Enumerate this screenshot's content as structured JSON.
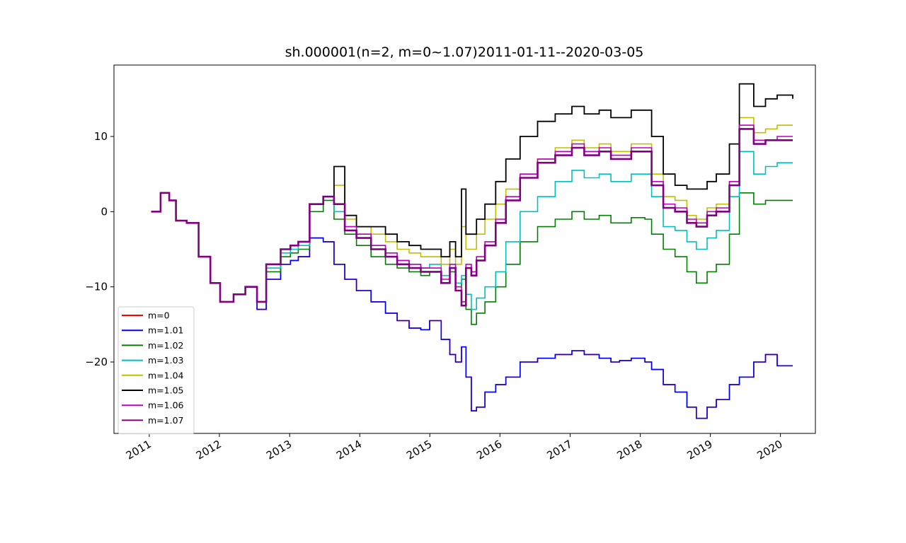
{
  "chart_data": {
    "type": "line",
    "title": "sh.000001(n=2, m=0~1.07)2011-01-11--2020-03-05",
    "xlabel": "",
    "ylabel": "",
    "x_ticks": [
      "2011",
      "2012",
      "2013",
      "2014",
      "2015",
      "2016",
      "2017",
      "2018",
      "2019",
      "2020"
    ],
    "y_ticks": [
      -20,
      -10,
      0,
      10
    ],
    "xlim": [
      "2010-07-01",
      "2020-07-01"
    ],
    "ylim": [
      -29.5,
      19.5
    ],
    "grid": false,
    "legend_position": "lower-left",
    "x": [
      "2011-01-11",
      "2011-03-01",
      "2011-04-15",
      "2011-05-20",
      "2011-07-15",
      "2011-09-15",
      "2011-11-15",
      "2012-01-05",
      "2012-03-15",
      "2012-05-15",
      "2012-07-15",
      "2012-09-01",
      "2012-11-15",
      "2013-01-05",
      "2013-02-15",
      "2013-04-15",
      "2013-06-25",
      "2013-08-20",
      "2013-10-15",
      "2013-12-15",
      "2014-03-01",
      "2014-05-15",
      "2014-07-15",
      "2014-09-15",
      "2014-11-15",
      "2014-12-31",
      "2015-03-01",
      "2015-04-15",
      "2015-05-15",
      "2015-06-15",
      "2015-07-08",
      "2015-08-05",
      "2015-09-01",
      "2015-10-15",
      "2015-12-10",
      "2016-02-01",
      "2016-04-15",
      "2016-07-15",
      "2016-10-15",
      "2017-01-10",
      "2017-03-15",
      "2017-06-01",
      "2017-08-01",
      "2017-09-15",
      "2017-11-15",
      "2018-01-25",
      "2018-03-01",
      "2018-05-01",
      "2018-07-01",
      "2018-09-01",
      "2018-10-20",
      "2018-12-15",
      "2019-02-01",
      "2019-04-10",
      "2019-06-01",
      "2019-08-15",
      "2019-10-15",
      "2019-12-15",
      "2020-03-05"
    ],
    "series": [
      {
        "name": "m=0",
        "color": "#ff0000",
        "values": [
          0,
          2.5,
          1.5,
          -1.2,
          -1.5,
          -6,
          -9.5,
          -12,
          -11,
          -10,
          -13,
          -9,
          -7,
          -6.5,
          -6,
          -3.5,
          -4,
          -7,
          -9,
          -10.5,
          -12,
          -13.5,
          -14.5,
          -15.5,
          -15.7,
          -14.5,
          -17,
          -19,
          -20,
          -18,
          -22,
          -26.5,
          -26,
          -24,
          -23,
          -22,
          -20,
          -19.5,
          -19,
          -18.5,
          -19,
          -19.5,
          -20,
          -19.8,
          -19.5,
          -20,
          -21,
          -23,
          -24,
          -26,
          -27.5,
          -26,
          -25,
          -23,
          -22,
          -20,
          -19,
          -20.5,
          -20.5
        ],
        "width": 1.6
      },
      {
        "name": "m=1.01",
        "color": "#0000ff",
        "values": [
          0,
          2.5,
          1.5,
          -1.2,
          -1.5,
          -6,
          -9.5,
          -12,
          -11,
          -10,
          -13,
          -9,
          -7,
          -6.5,
          -6,
          -3.5,
          -4,
          -7,
          -9,
          -10.5,
          -12,
          -13.5,
          -14.5,
          -15.5,
          -15.7,
          -14.5,
          -17,
          -19,
          -20,
          -18,
          -22,
          -26.5,
          -26,
          -24,
          -23,
          -22,
          -20,
          -19.5,
          -19,
          -18.5,
          -19,
          -19.5,
          -20,
          -19.8,
          -19.5,
          -20,
          -21,
          -23,
          -24,
          -26,
          -27.5,
          -26,
          -25,
          -23,
          -22,
          -20,
          -19,
          -20.5,
          -20.5
        ],
        "width": 1.6
      },
      {
        "name": "m=1.02",
        "color": "#008000",
        "values": [
          0,
          2.5,
          1.5,
          -1.2,
          -1.5,
          -6,
          -9.5,
          -12,
          -11,
          -10,
          -12,
          -8,
          -6,
          -5.5,
          -5,
          0,
          1.5,
          -1,
          -3,
          -4.5,
          -6,
          -7,
          -7.5,
          -8,
          -8.5,
          -8,
          -9.5,
          -8,
          -10,
          -9,
          -13,
          -15,
          -13.5,
          -12,
          -10,
          -7,
          -4,
          -2,
          -1,
          0,
          -1,
          -0.5,
          -1.5,
          -1.5,
          -0.8,
          -1,
          -3,
          -5,
          -6,
          -8,
          -9.5,
          -8,
          -7,
          -3,
          2.5,
          1,
          1.5,
          1.5,
          1.5
        ],
        "width": 1.6
      },
      {
        "name": "m=1.03",
        "color": "#00bfbf",
        "values": [
          0,
          2.5,
          1.5,
          -1.2,
          -1.5,
          -6,
          -9.5,
          -12,
          -11,
          -10,
          -12,
          -7.5,
          -5.5,
          -5,
          -4.5,
          1,
          2,
          0,
          -2,
          -3,
          -4.5,
          -6,
          -6.5,
          -7,
          -7.5,
          -7,
          -8.5,
          -7,
          -9.5,
          -8.5,
          -11,
          -13,
          -11.5,
          -10,
          -8,
          -4,
          0,
          2,
          4,
          5.5,
          4.5,
          5,
          4,
          4,
          5,
          5,
          2,
          -2,
          -2.5,
          -4,
          -5,
          -3.5,
          -2.5,
          2,
          8,
          5,
          6,
          6.5,
          6.5
        ],
        "width": 1.6
      },
      {
        "name": "m=1.04",
        "color": "#bfbf00",
        "values": [
          0,
          2.5,
          1.5,
          -1.2,
          -1.5,
          -6,
          -9.5,
          -12,
          -11,
          -10,
          -12,
          -7,
          -5,
          -4.5,
          -4,
          1,
          2,
          3.5,
          -1,
          -2,
          -3,
          -4,
          -5,
          -5.5,
          -6,
          -6,
          -7,
          -5,
          -7,
          -2,
          -5,
          -5,
          -3,
          -1,
          1,
          3,
          5,
          7,
          8.5,
          9.5,
          8.5,
          9,
          8,
          8,
          9,
          9,
          5,
          2,
          1.5,
          -0.5,
          -1,
          0.5,
          1,
          4,
          12.5,
          10.5,
          11,
          11.5,
          11.5
        ],
        "width": 1.6
      },
      {
        "name": "m=1.05",
        "color": "#000000",
        "values": [
          0,
          2.5,
          1.5,
          -1.2,
          -1.5,
          -6,
          -9.5,
          -12,
          -11,
          -10,
          -12,
          -7,
          -5,
          -4.5,
          -4,
          1,
          2,
          6,
          -0.5,
          -2,
          -2,
          -3,
          -4,
          -4.5,
          -5,
          -5,
          -6,
          -4,
          -6,
          3,
          -3,
          -3,
          -1,
          1,
          4,
          7,
          10,
          12,
          13,
          14,
          13,
          13.5,
          12.5,
          12.5,
          13.5,
          13.5,
          10,
          5,
          3.5,
          3,
          3,
          4,
          5,
          9,
          17,
          14,
          15,
          15.5,
          15
        ],
        "width": 1.8
      },
      {
        "name": "m=1.06",
        "color": "#bf00bf",
        "values": [
          0,
          2.5,
          1.5,
          -1.2,
          -1.5,
          -6,
          -9.5,
          -12,
          -11,
          -10,
          -12,
          -7,
          -5,
          -4.5,
          -4,
          1,
          2,
          1,
          -2,
          -3,
          -4.5,
          -5.5,
          -6.5,
          -7,
          -7.5,
          -7.5,
          -9,
          -7,
          -10,
          -12,
          -7,
          -8,
          -6,
          -4,
          -1,
          2,
          5,
          7,
          8,
          9,
          8,
          8.5,
          7.5,
          7.5,
          8.5,
          8.5,
          4,
          1,
          0.5,
          -1,
          -1.5,
          0,
          0.5,
          4,
          11.5,
          9.5,
          9.5,
          10,
          10
        ],
        "width": 1.6
      },
      {
        "name": "m=1.07",
        "color": "#800080",
        "values": [
          0,
          2.5,
          1.5,
          -1.2,
          -1.5,
          -6,
          -9.5,
          -12,
          -11,
          -10,
          -12,
          -7,
          -5,
          -4.5,
          -4,
          1,
          2,
          1,
          -2.5,
          -3.5,
          -5,
          -6,
          -7,
          -7.5,
          -8,
          -8,
          -9.5,
          -7.5,
          -10.5,
          -12.5,
          -7.5,
          -8.5,
          -6.5,
          -4.5,
          -1.5,
          1.5,
          4.5,
          6.5,
          7.5,
          8.5,
          7.5,
          8,
          7,
          7,
          8,
          8,
          3.5,
          0.5,
          0,
          -1.5,
          -2,
          -0.5,
          0,
          3.5,
          11,
          9,
          9.5,
          9.5,
          9.5
        ],
        "width": 2.6
      }
    ]
  }
}
